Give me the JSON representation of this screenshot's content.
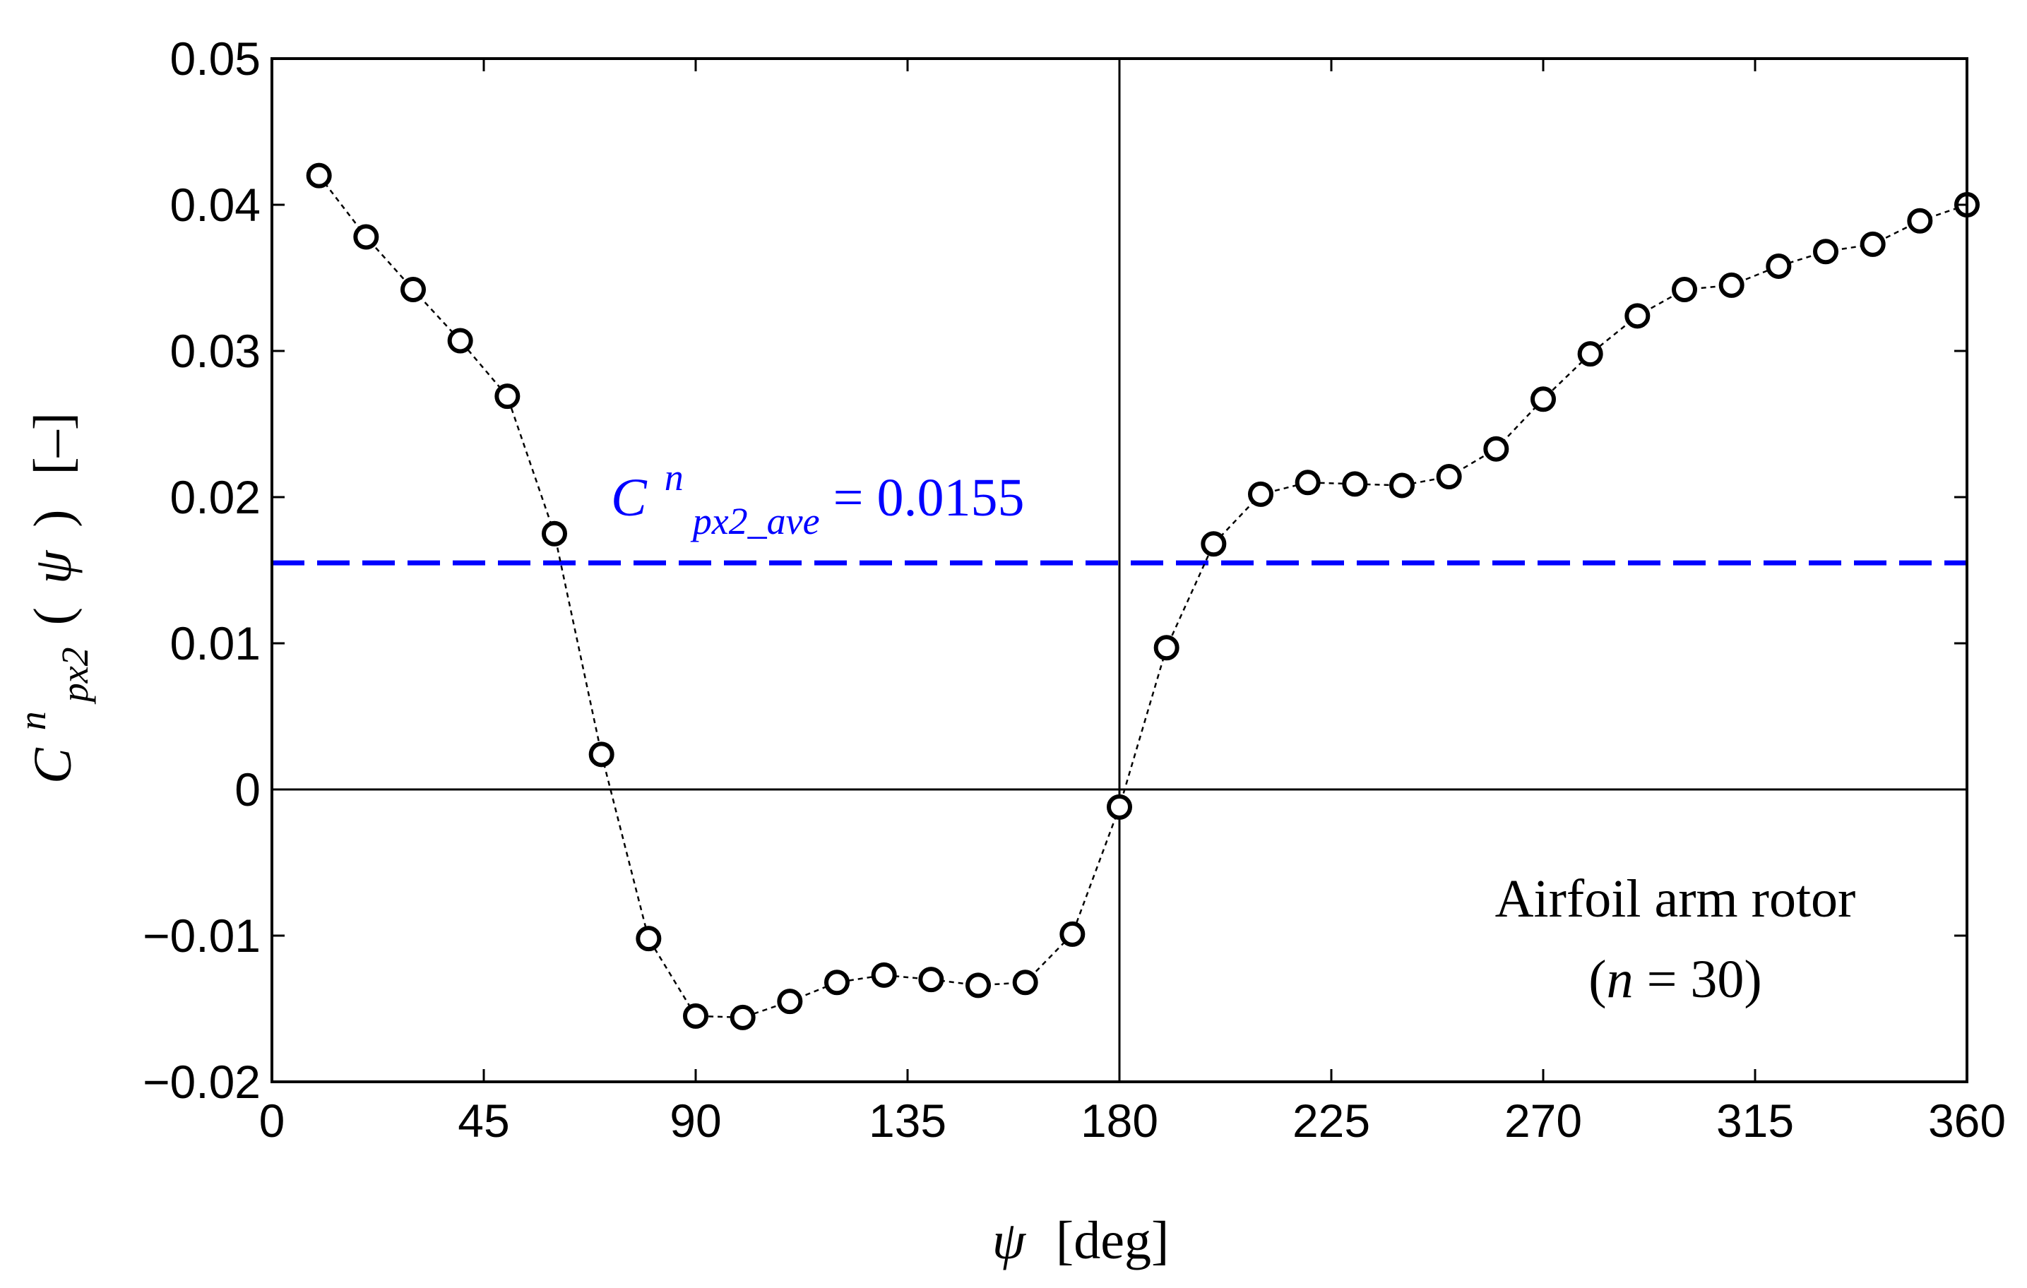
{
  "chart_data": {
    "type": "scatter",
    "title": "",
    "xlabel": {
      "symbol": "ψ",
      "unit": "[deg]"
    },
    "ylabel": {
      "base": "C",
      "sup": "n",
      "sub": "px2",
      "open": "(",
      "symbol": "ψ",
      "close": ")",
      "unit": "[–]"
    },
    "xlim": [
      0,
      360
    ],
    "ylim": [
      -0.02,
      0.05
    ],
    "xticks": [
      0,
      45,
      90,
      135,
      180,
      225,
      270,
      315,
      360
    ],
    "xtick_labels": [
      "0",
      "45",
      "90",
      "135",
      "180",
      "225",
      "270",
      "315",
      "360"
    ],
    "yticks": [
      -0.02,
      -0.01,
      0,
      0.01,
      0.02,
      0.03,
      0.04,
      0.05
    ],
    "ytick_labels": [
      "−0.02",
      "−0.01",
      "0",
      "0.01",
      "0.02",
      "0.03",
      "0.04",
      "0.05"
    ],
    "grid": false,
    "reference_lines": {
      "horizontal_y": 0,
      "vertical_x": 180
    },
    "series": [
      {
        "name": "C^n_px2(ψ)",
        "marker": "open-circle",
        "line": "dotted",
        "color": "#000000",
        "x": [
          10,
          20,
          30,
          40,
          50,
          60,
          70,
          80,
          90,
          100,
          110,
          120,
          130,
          140,
          150,
          160,
          170,
          180,
          190,
          200,
          210,
          220,
          230,
          240,
          250,
          260,
          270,
          280,
          290,
          300,
          310,
          320,
          330,
          340,
          350,
          360
        ],
        "y": [
          0.042,
          0.0378,
          0.0342,
          0.0307,
          0.0269,
          0.0175,
          0.0024,
          -0.0102,
          -0.0155,
          -0.0156,
          -0.0145,
          -0.0132,
          -0.0127,
          -0.013,
          -0.0134,
          -0.0132,
          -0.0099,
          -0.0012,
          0.0097,
          0.0168,
          0.0202,
          0.021,
          0.0209,
          0.0208,
          0.0214,
          0.0233,
          0.0267,
          0.0298,
          0.0324,
          0.0342,
          0.0345,
          0.0358,
          0.0368,
          0.0373,
          0.0389,
          0.04
        ]
      }
    ],
    "average_line": {
      "value": 0.0155,
      "color": "#0000ff",
      "style": "dashed",
      "label_base": "C",
      "label_sup": "n",
      "label_sub": "px2_ave",
      "label_eq": "= 0.0155"
    },
    "annotation": {
      "line1": "Airfoil arm rotor",
      "line2_open": "(",
      "line2_var": "n",
      "line2_rest": " = 30)"
    }
  }
}
